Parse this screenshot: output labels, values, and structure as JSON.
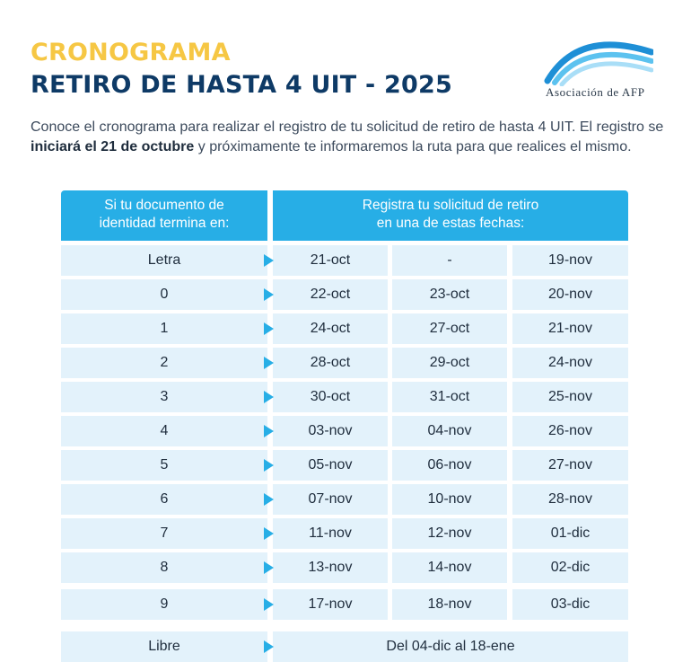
{
  "header": {
    "title_line1": "CRONOGRAMA",
    "title_line2": "RETIRO DE HASTA 4 UIT - 2025"
  },
  "logo": {
    "text": "Asociación de AFP",
    "colors": [
      "#1e8fd6",
      "#5cc2ef",
      "#a9def7"
    ]
  },
  "intro": {
    "part1": "Conoce el cronograma para realizar el registro de tu solicitud de retiro de hasta 4 UIT. El registro se ",
    "bold": "iniciará el 21 de octubre",
    "part2": " y próximamente te informaremos la ruta para que realices el mismo."
  },
  "table": {
    "header_left_line1": "Si tu documento de",
    "header_left_line2": "identidad termina en:",
    "header_right_line1": "Registra tu solicitud de retiro",
    "header_right_line2": "en una de estas fechas:",
    "rows": [
      {
        "id": "Letra",
        "dates": [
          "21-oct",
          "-",
          "19-nov"
        ]
      },
      {
        "id": "0",
        "dates": [
          "22-oct",
          "23-oct",
          "20-nov"
        ]
      },
      {
        "id": "1",
        "dates": [
          "24-oct",
          "27-oct",
          "21-nov"
        ]
      },
      {
        "id": "2",
        "dates": [
          "28-oct",
          "29-oct",
          "24-nov"
        ]
      },
      {
        "id": "3",
        "dates": [
          "30-oct",
          "31-oct",
          "25-nov"
        ]
      },
      {
        "id": "4",
        "dates": [
          "03-nov",
          "04-nov",
          "26-nov"
        ]
      },
      {
        "id": "5",
        "dates": [
          "05-nov",
          "06-nov",
          "27-nov"
        ]
      },
      {
        "id": "6",
        "dates": [
          "07-nov",
          "10-nov",
          "28-nov"
        ]
      },
      {
        "id": "7",
        "dates": [
          "11-nov",
          "12-nov",
          "01-dic"
        ]
      },
      {
        "id": "8",
        "dates": [
          "13-nov",
          "14-nov",
          "02-dic"
        ]
      },
      {
        "id": "9",
        "dates": [
          "17-nov",
          "18-nov",
          "03-dic"
        ]
      }
    ],
    "libre": {
      "id": "Libre",
      "range": "Del 04-dic al 18-ene"
    }
  }
}
